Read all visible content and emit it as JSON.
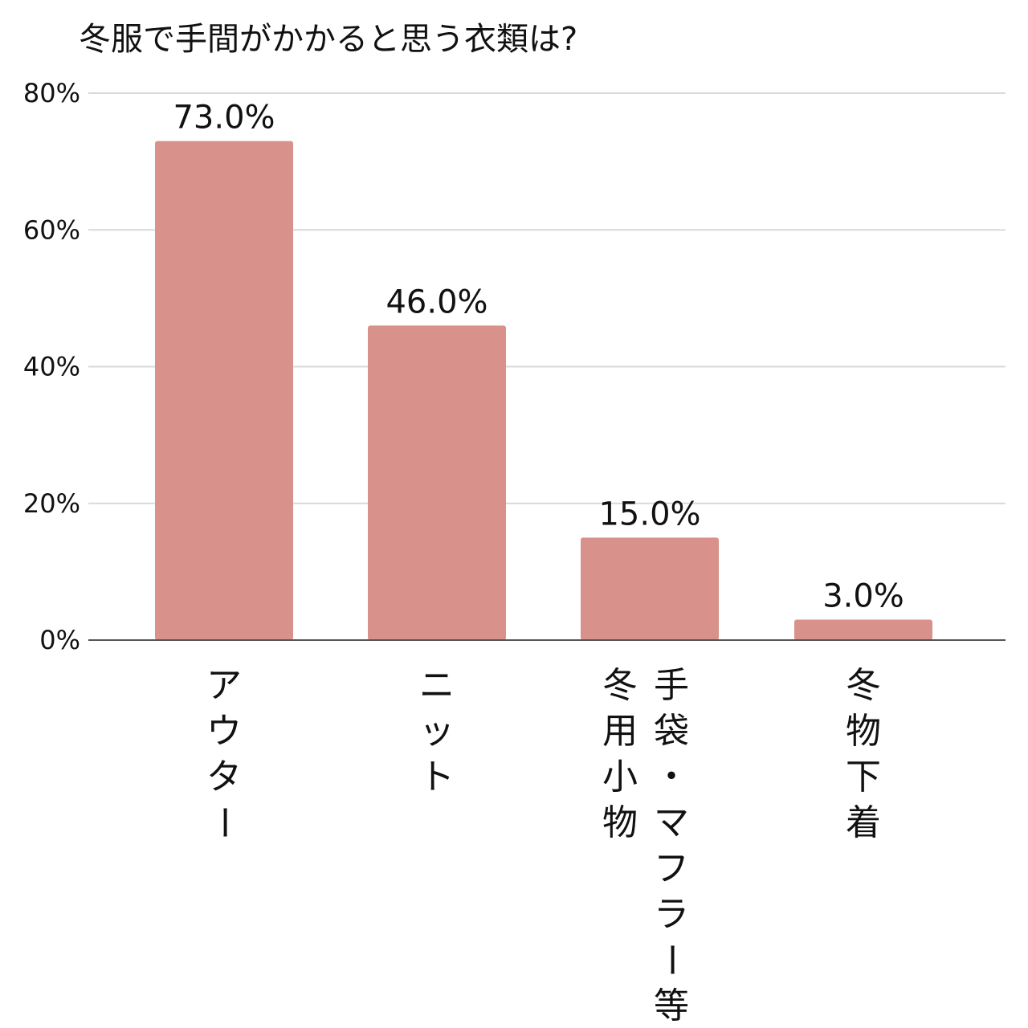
{
  "chart_data": {
    "type": "bar",
    "title": "冬服で手間がかかると思う衣類は?",
    "categories": [
      "アウター",
      "ニット",
      "手袋・マフラー等\n冬用小物",
      "冬物下着"
    ],
    "values": [
      73.0,
      46.0,
      15.0,
      3.0
    ],
    "data_labels": [
      "73.0%",
      "46.0%",
      "15.0%",
      "3.0%"
    ],
    "ylim": [
      0,
      80
    ],
    "yticks": [
      0,
      20,
      40,
      60,
      80
    ],
    "ytick_labels": [
      "0%",
      "20%",
      "40%",
      "60%",
      "80%"
    ],
    "xlabel": "",
    "ylabel": "",
    "grid": true,
    "legend": "none",
    "bar_color": "#d9918c",
    "grid_color": "#d9d9d9",
    "axis_color": "#555555"
  }
}
